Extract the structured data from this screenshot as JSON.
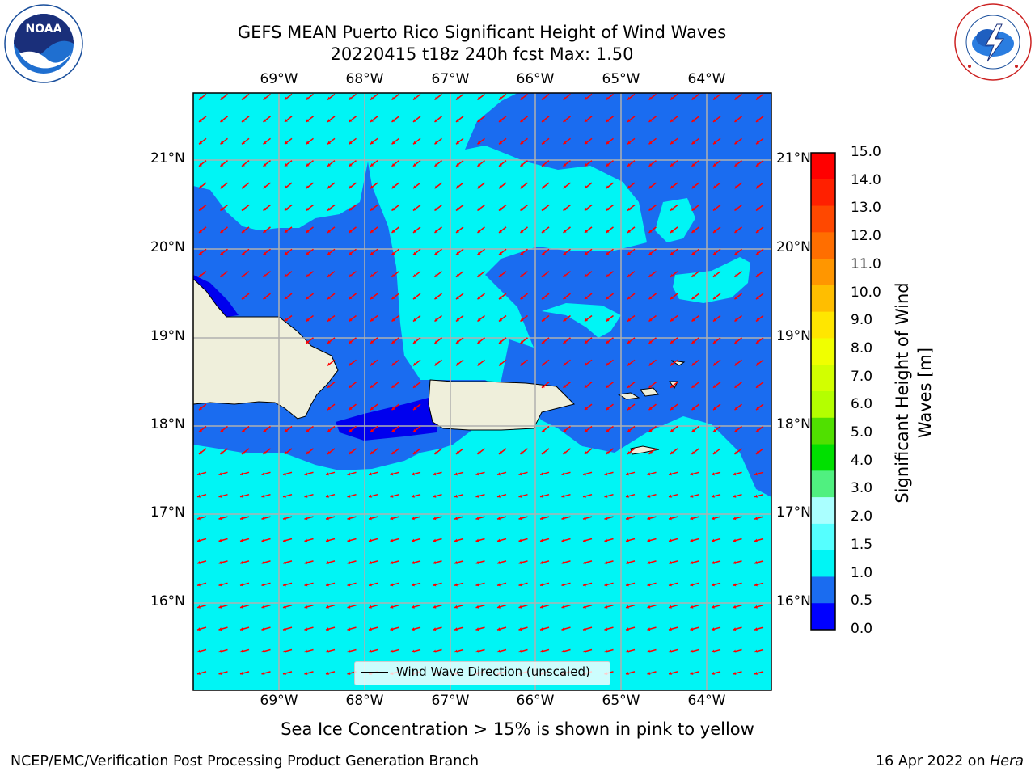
{
  "title": {
    "line1": "GEFS MEAN Puerto Rico Significant Height of Wind Waves",
    "line2": "20220415 t18z 240h fcst   Max: 1.50"
  },
  "logos": {
    "left": {
      "text": "NOAA",
      "ring_text": "NATIONAL OCEANIC AND ATMOSPHERIC ADMINISTRATION · U.S. DEPARTMENT OF COMMERCE"
    },
    "right": {
      "ring_text": "NATIONAL WEATHER SERVICE"
    }
  },
  "map": {
    "lon_labels": [
      "69°W",
      "68°W",
      "67°W",
      "66°W",
      "65°W",
      "64°W"
    ],
    "lat_labels": [
      "21°N",
      "20°N",
      "19°N",
      "18°N",
      "17°N",
      "16°N"
    ],
    "legend_label": "Wind Wave Direction (unscaled)",
    "colors": {
      "ocean_0_5_1_0": "#1a6cf0",
      "ocean_1_0_1_5": "#00f5f5",
      "ocean_0_0_0_5": "#0000ee",
      "land": "#efefdb",
      "arrow": "#ff0000",
      "grid": "#b0b0b0"
    }
  },
  "colorbar": {
    "title_line1": "Significant Height of Wind",
    "title_line2": "Waves [m]",
    "ticks": [
      "15.0",
      "14.0",
      "13.0",
      "12.0",
      "11.0",
      "10.0",
      "9.0",
      "8.0",
      "7.0",
      "6.0",
      "5.0",
      "4.0",
      "3.0",
      "2.0",
      "1.5",
      "1.0",
      "0.5",
      "0.0"
    ],
    "colors_top_to_bottom": [
      "#ff0000",
      "#ff2000",
      "#ff4800",
      "#ff6e00",
      "#ff9600",
      "#ffbe00",
      "#ffe600",
      "#f0ff00",
      "#d2ff00",
      "#b4ff00",
      "#50e000",
      "#00e000",
      "#50f080",
      "#aaffff",
      "#55ffff",
      "#00f5f5",
      "#1a6cf0",
      "#0000ff"
    ]
  },
  "sea_ice_note": "Sea Ice Concentration > 15% is shown in pink to yellow",
  "footer": {
    "left": "NCEP/EMC/Verification Post Processing Product Generation Branch",
    "right_prefix": "16 Apr 2022 on ",
    "right_host": "Hera"
  }
}
